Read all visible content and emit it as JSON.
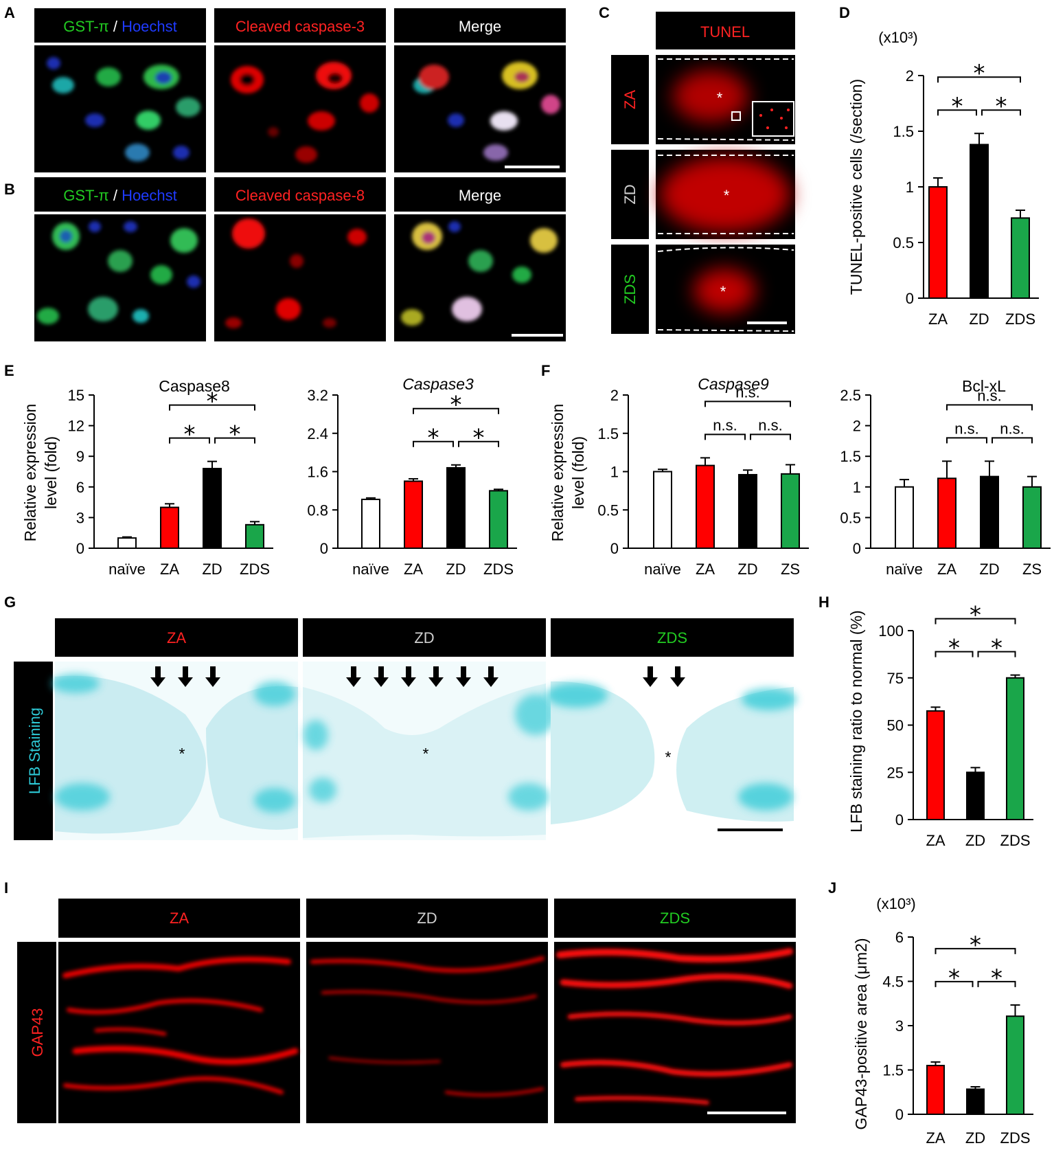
{
  "panel_labels": [
    "A",
    "B",
    "C",
    "D",
    "E",
    "F",
    "G",
    "H",
    "I",
    "J"
  ],
  "colors": {
    "red": "#ff0000",
    "black": "#000000",
    "green": "#1aa64a",
    "white": "#ffffff",
    "blue_text": "#1f3bff",
    "green_text": "#22cc22",
    "gray_text": "#d0d0d0",
    "lfb": "#2ec9d6"
  },
  "micrographs": {
    "A": {
      "headers": [
        {
          "parts": [
            "GST-π",
            " / ",
            "Hoechst"
          ],
          "colors": [
            "#22cc22",
            "#ffffff",
            "#1f3bff"
          ]
        },
        {
          "parts": [
            "Cleaved caspase-3"
          ],
          "colors": [
            "#ff2222"
          ]
        },
        {
          "parts": [
            "Merge"
          ],
          "colors": [
            "#ffffff"
          ]
        }
      ]
    },
    "B": {
      "headers": [
        {
          "parts": [
            "GST-π",
            " / ",
            "Hoechst"
          ],
          "colors": [
            "#22cc22",
            "#ffffff",
            "#1f3bff"
          ]
        },
        {
          "parts": [
            "Cleaved caspase-8"
          ],
          "colors": [
            "#ff2222"
          ]
        },
        {
          "parts": [
            "Merge"
          ],
          "colors": [
            "#ffffff"
          ]
        }
      ]
    },
    "C": {
      "header": "TUNEL",
      "rows": [
        "ZA",
        "ZD",
        "ZDS"
      ],
      "row_colors": [
        "#ff2222",
        "#d0d0d0",
        "#22cc22"
      ],
      "lesion_marker": "*"
    },
    "G": {
      "headers": [
        "ZA",
        "ZD",
        "ZDS"
      ],
      "header_colors": [
        "#ff2222",
        "#d0d0d0",
        "#22cc22"
      ],
      "side_label": "LFB Staining",
      "lesion_marker": "*",
      "arrows": [
        3,
        6,
        2
      ]
    },
    "I": {
      "headers": [
        "ZA",
        "ZD",
        "ZDS"
      ],
      "header_colors": [
        "#ff2222",
        "#d0d0d0",
        "#22cc22"
      ],
      "side_label": "GAP43"
    }
  },
  "chart_data": [
    {
      "id": "D",
      "type": "bar",
      "categories": [
        "ZA",
        "ZD",
        "ZDS"
      ],
      "values": [
        1.0,
        1.38,
        0.72
      ],
      "errors": [
        0.08,
        0.1,
        0.07
      ],
      "ylabel": "TUNEL-positive cells (/section)",
      "multiplier": "(x10³)",
      "ylim": [
        0,
        2
      ],
      "yticks": [
        "0",
        "0.5",
        "1",
        "1.5",
        "2"
      ],
      "ytick_values": [
        0,
        0.5,
        1,
        1.5,
        2
      ],
      "bar_colors": [
        "#ff0000",
        "#000000",
        "#1aa64a"
      ],
      "significance": [
        {
          "pair": [
            0,
            1
          ],
          "label": "*"
        },
        {
          "pair": [
            1,
            2
          ],
          "label": "*"
        },
        {
          "pair": [
            0,
            2
          ],
          "label": "*"
        }
      ]
    },
    {
      "id": "E1",
      "type": "bar",
      "title": "Caspase8",
      "title_italic": false,
      "categories": [
        "naïve",
        "ZA",
        "ZD",
        "ZDS"
      ],
      "values": [
        1.0,
        4.0,
        7.8,
        2.3
      ],
      "errors": [
        0.1,
        0.35,
        0.7,
        0.3
      ],
      "ylabel": "Relative expression level (fold)",
      "ylim": [
        0,
        15
      ],
      "yticks": [
        "0",
        "3",
        "6",
        "9",
        "12",
        "15"
      ],
      "ytick_values": [
        0,
        3,
        6,
        9,
        12,
        15
      ],
      "bar_colors": [
        "#ffffff",
        "#ff0000",
        "#000000",
        "#1aa64a"
      ],
      "significance": [
        {
          "pair": [
            1,
            2
          ],
          "label": "*"
        },
        {
          "pair": [
            2,
            3
          ],
          "label": "*"
        },
        {
          "pair": [
            1,
            3
          ],
          "label": "*"
        }
      ]
    },
    {
      "id": "E2",
      "type": "bar",
      "title": "Caspase3",
      "title_italic": true,
      "categories": [
        "naïve",
        "ZA",
        "ZD",
        "ZDS"
      ],
      "values": [
        1.02,
        1.4,
        1.68,
        1.2
      ],
      "errors": [
        0.03,
        0.05,
        0.06,
        0.03
      ],
      "ylim": [
        0,
        3.2
      ],
      "yticks": [
        "0",
        "0.8",
        "1.6",
        "2.4",
        "3.2"
      ],
      "ytick_values": [
        0,
        0.8,
        1.6,
        2.4,
        3.2
      ],
      "bar_colors": [
        "#ffffff",
        "#ff0000",
        "#000000",
        "#1aa64a"
      ],
      "significance": [
        {
          "pair": [
            1,
            2
          ],
          "label": "*"
        },
        {
          "pair": [
            2,
            3
          ],
          "label": "*"
        },
        {
          "pair": [
            1,
            3
          ],
          "label": "*"
        }
      ]
    },
    {
      "id": "F1",
      "type": "bar",
      "title": "Caspase9",
      "title_italic": true,
      "categories": [
        "naïve",
        "ZA",
        "ZD",
        "ZS"
      ],
      "values": [
        1.0,
        1.08,
        0.96,
        0.97
      ],
      "errors": [
        0.03,
        0.1,
        0.06,
        0.12
      ],
      "ylabel": "Relative expression level (fold)",
      "ylim": [
        0,
        2
      ],
      "yticks": [
        "0",
        "0.5",
        "1",
        "1.5",
        "2"
      ],
      "ytick_values": [
        0,
        0.5,
        1,
        1.5,
        2
      ],
      "bar_colors": [
        "#ffffff",
        "#ff0000",
        "#000000",
        "#1aa64a"
      ],
      "significance": [
        {
          "pair": [
            1,
            2
          ],
          "label": "n.s."
        },
        {
          "pair": [
            2,
            3
          ],
          "label": "n.s."
        },
        {
          "pair": [
            1,
            3
          ],
          "label": "n.s."
        }
      ]
    },
    {
      "id": "F2",
      "type": "bar",
      "title": "Bcl-xL",
      "title_italic": false,
      "categories": [
        "naïve",
        "ZA",
        "ZD",
        "ZS"
      ],
      "values": [
        1.0,
        1.14,
        1.17,
        1.0
      ],
      "errors": [
        0.12,
        0.28,
        0.25,
        0.17
      ],
      "ylim": [
        0,
        2.5
      ],
      "yticks": [
        "0",
        "0.5",
        "1",
        "1.5",
        "2",
        "2.5"
      ],
      "ytick_values": [
        0,
        0.5,
        1,
        1.5,
        2,
        2.5
      ],
      "bar_colors": [
        "#ffffff",
        "#ff0000",
        "#000000",
        "#1aa64a"
      ],
      "significance": [
        {
          "pair": [
            1,
            2
          ],
          "label": "n.s."
        },
        {
          "pair": [
            2,
            3
          ],
          "label": "n.s."
        },
        {
          "pair": [
            1,
            3
          ],
          "label": "n.s."
        }
      ]
    },
    {
      "id": "H",
      "type": "bar",
      "categories": [
        "ZA",
        "ZD",
        "ZDS"
      ],
      "values": [
        57.5,
        25,
        75
      ],
      "errors": [
        2,
        2.5,
        1.5
      ],
      "ylabel": "LFB staining ratio to normal (%)",
      "ylim": [
        0,
        100
      ],
      "yticks": [
        "0",
        "25",
        "50",
        "75",
        "100"
      ],
      "ytick_values": [
        0,
        25,
        50,
        75,
        100
      ],
      "bar_colors": [
        "#ff0000",
        "#000000",
        "#1aa64a"
      ],
      "significance": [
        {
          "pair": [
            0,
            1
          ],
          "label": "*"
        },
        {
          "pair": [
            1,
            2
          ],
          "label": "*"
        },
        {
          "pair": [
            0,
            2
          ],
          "label": "*"
        }
      ]
    },
    {
      "id": "J",
      "type": "bar",
      "categories": [
        "ZA",
        "ZD",
        "ZDS"
      ],
      "values": [
        1.65,
        0.85,
        3.32
      ],
      "errors": [
        0.12,
        0.08,
        0.38
      ],
      "ylabel": "GAP43-positive area (μm2)",
      "multiplier": "(x10³)",
      "ylim": [
        0,
        6
      ],
      "yticks": [
        "0",
        "1.5",
        "3",
        "4.5",
        "6"
      ],
      "ytick_values": [
        0,
        1.5,
        3,
        4.5,
        6
      ],
      "bar_colors": [
        "#ff0000",
        "#000000",
        "#1aa64a"
      ],
      "significance": [
        {
          "pair": [
            0,
            1
          ],
          "label": "*"
        },
        {
          "pair": [
            1,
            2
          ],
          "label": "*"
        },
        {
          "pair": [
            0,
            2
          ],
          "label": "*"
        }
      ]
    }
  ]
}
